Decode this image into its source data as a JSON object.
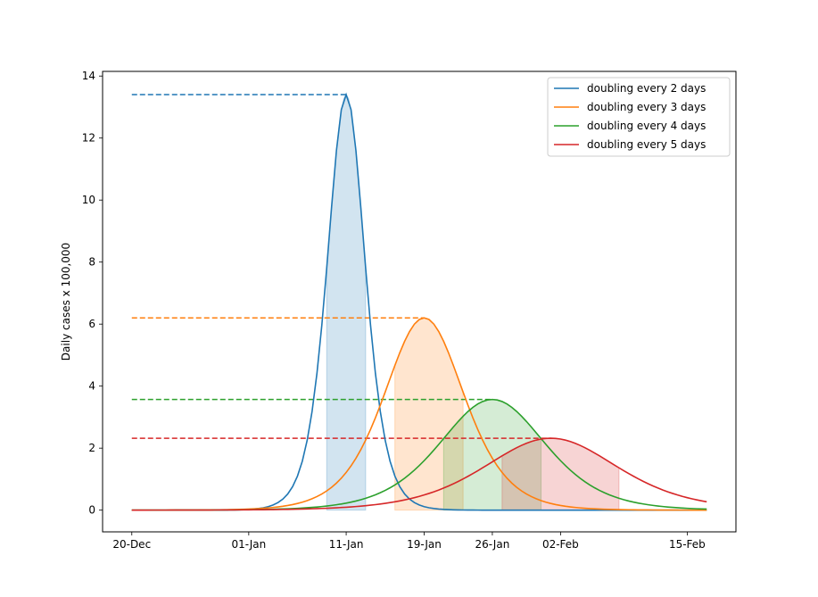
{
  "chart_data": {
    "type": "line",
    "title": "",
    "xlabel": "",
    "ylabel": "Daily cases x 100,000",
    "x_tick_labels": [
      "20-Dec",
      "01-Jan",
      "11-Jan",
      "19-Jan",
      "26-Jan",
      "02-Feb",
      "15-Feb"
    ],
    "x_tick_days": [
      0,
      12,
      22,
      30,
      37,
      44,
      57
    ],
    "y_tick_labels": [
      "0",
      "2",
      "4",
      "6",
      "8",
      "10",
      "12",
      "14"
    ],
    "y_ticks": [
      0,
      2,
      4,
      6,
      8,
      10,
      12,
      14
    ],
    "xlim_days": [
      -3,
      62
    ],
    "ylim": [
      -0.7,
      14.15
    ],
    "grid": false,
    "legend_position": "top-right",
    "series": [
      {
        "name": "doubling every 2 days",
        "color": "#1f77b4",
        "peak_day": 22,
        "peak": 13.4,
        "width": 2.6,
        "band": [
          20,
          24
        ]
      },
      {
        "name": "doubling every 3 days",
        "color": "#ff7f0e",
        "peak_day": 30,
        "peak": 6.2,
        "width": 5.5,
        "band": [
          27,
          34
        ]
      },
      {
        "name": "doubling every 4 days",
        "color": "#2ca02c",
        "peak_day": 37,
        "peak": 3.57,
        "width": 7.3,
        "band": [
          32,
          42
        ]
      },
      {
        "name": "doubling every 5 days",
        "color": "#d62728",
        "peak_day": 43,
        "peak": 2.32,
        "width": 9.2,
        "band": [
          38,
          50
        ]
      }
    ]
  }
}
